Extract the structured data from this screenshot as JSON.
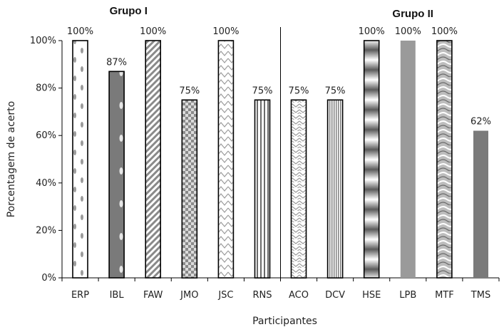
{
  "chart_data": {
    "type": "bar",
    "categories": [
      "ERP",
      "IBL",
      "FAW",
      "JMO",
      "JSC",
      "RNS",
      "ACO",
      "DCV",
      "HSE",
      "LPB",
      "MTF",
      "TMS"
    ],
    "values": [
      100,
      87,
      100,
      75,
      100,
      75,
      75,
      75,
      100,
      100,
      100,
      62
    ],
    "data_labels": [
      "100%",
      "87%",
      "100%",
      "75%",
      "100%",
      "75%",
      "75%",
      "75%",
      "100%",
      "100%",
      "100%",
      "62%"
    ],
    "yticks": [
      "0%",
      "20%",
      "40%",
      "60%",
      "80%",
      "100%"
    ],
    "ylim": [
      0,
      100
    ],
    "xlabel": "Participantes",
    "ylabel": "Porcentagem de acerto",
    "groups": [
      {
        "name": "Grupo I",
        "members": [
          "ERP",
          "IBL",
          "FAW",
          "JMO",
          "JSC",
          "RNS"
        ]
      },
      {
        "name": "Grupo II",
        "members": [
          "ACO",
          "DCV",
          "HSE",
          "LPB",
          "MTF",
          "TMS"
        ]
      }
    ],
    "grid": false,
    "legend": "none",
    "bar_styles": [
      "dots-oval",
      "dark-dots",
      "diagonal-stripes",
      "checker",
      "zigzag-vertical",
      "vertical-stripes",
      "zigzag-horizontal",
      "fine-vertical",
      "horizontal-bands",
      "solid-gray",
      "wave-pattern",
      "solid-dark"
    ],
    "colors": {
      "bar_outline": "#000000",
      "dark_fill": "#7a7a7a",
      "mid_fill": "#9a9a9a",
      "axis": "#000000"
    }
  }
}
